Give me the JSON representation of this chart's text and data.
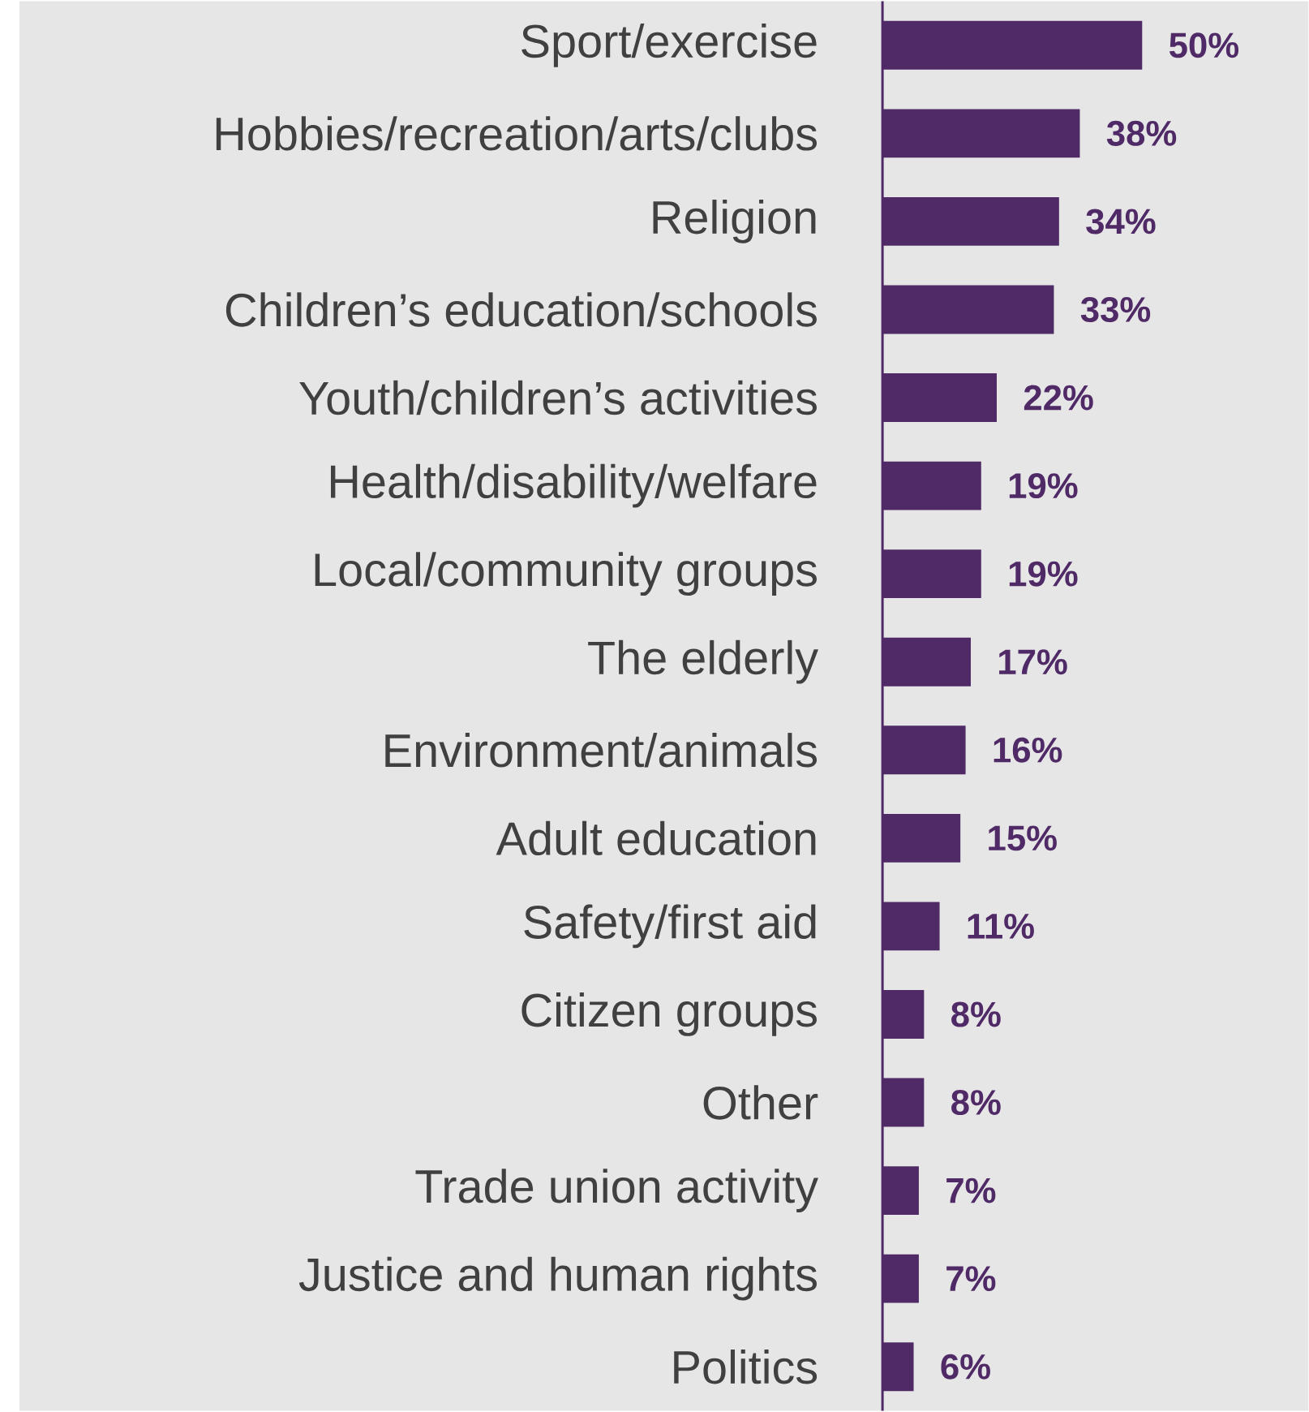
{
  "chart_data": {
    "type": "bar",
    "orientation": "horizontal",
    "color": "#4f2a66",
    "categories": [
      "Sport/exercise",
      "Hobbies/recreation/arts/clubs",
      "Religion",
      "Children’s education/schools",
      "Youth/children’s activities",
      "Health/disability/welfare",
      "Local/community groups",
      "The elderly",
      "Environment/animals",
      "Adult education",
      "Safety/first aid",
      "Citizen groups",
      "Other",
      "Trade union activity",
      "Justice and human rights",
      "Politics"
    ],
    "values": [
      50,
      38,
      34,
      33,
      22,
      19,
      19,
      17,
      16,
      15,
      11,
      8,
      8,
      7,
      7,
      6
    ],
    "value_labels": [
      "50%",
      "38%",
      "34%",
      "33%",
      "22%",
      "19%",
      "19%",
      "17%",
      "16%",
      "15%",
      "11%",
      "8%",
      "8%",
      "7%",
      "7%",
      "6%"
    ]
  }
}
